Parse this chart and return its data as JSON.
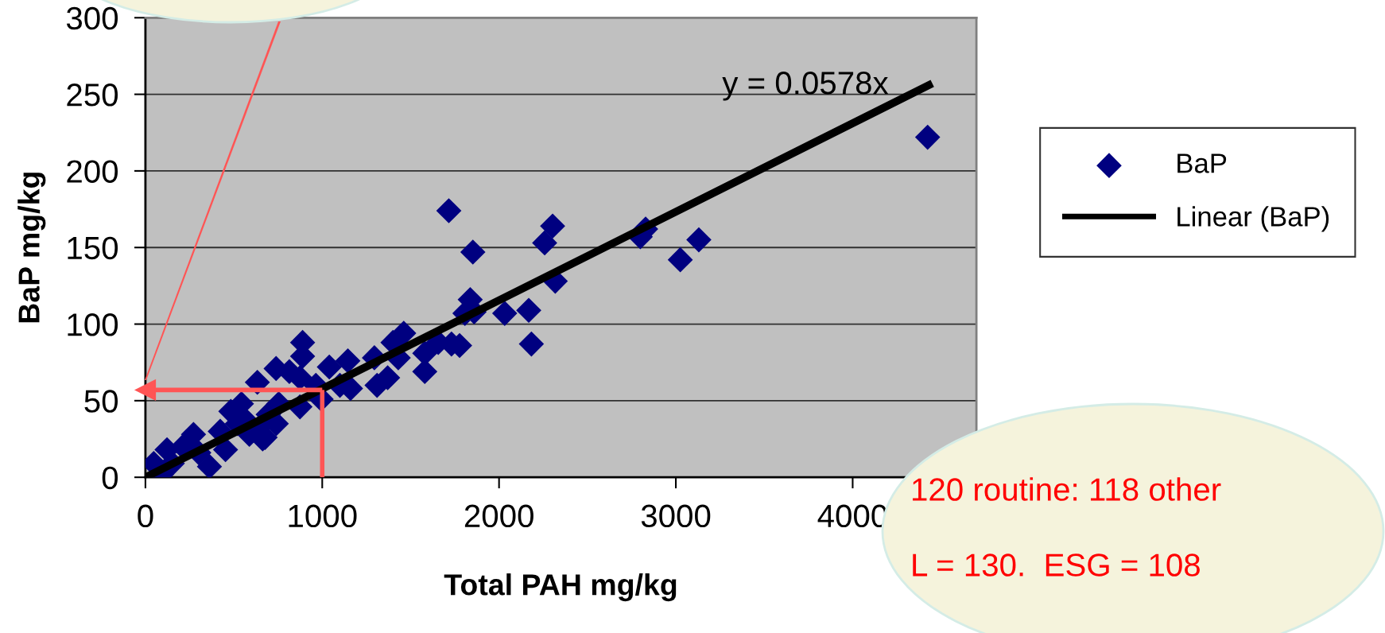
{
  "chart_data": {
    "type": "scatter",
    "xlabel": "Total PAH mg/kg",
    "ylabel": "BaP mg/kg",
    "xlim": [
      0,
      4700
    ],
    "xticks": [
      0,
      1000,
      2000,
      3000,
      4000
    ],
    "ylim": [
      0,
      300
    ],
    "yticks": [
      0,
      50,
      100,
      150,
      200,
      250,
      300
    ],
    "grid": "y",
    "legend": "right",
    "marker": "diamond",
    "series": [
      {
        "name": "BaP",
        "color": "#000080",
        "x": [
          47,
          92,
          122,
          152,
          212,
          272,
          302,
          362,
          423,
          453,
          483,
          520,
          543,
          560,
          588,
          633,
          640,
          663,
          677,
          694,
          739,
          740,
          754,
          814,
          874,
          874,
          889,
          889,
          964,
          994,
          1040,
          1100,
          1145,
          1160,
          1295,
          1310,
          1370,
          1400,
          1430,
          1461,
          1580,
          1580,
          1656,
          1716,
          1731,
          1777,
          1807,
          1837,
          1852,
          1859,
          2032,
          2168,
          2183,
          2258,
          2303,
          2318,
          2799,
          2829,
          3025,
          3130,
          4424
        ],
        "values": [
          9,
          2,
          18,
          9,
          20,
          28,
          16,
          7,
          30,
          18,
          43,
          35,
          48,
          38,
          28,
          62,
          32,
          25,
          26,
          41,
          71,
          35,
          48,
          69,
          65,
          46,
          88,
          79,
          60,
          51,
          72,
          60,
          76,
          58,
          78,
          60,
          65,
          88,
          78,
          94,
          81,
          69,
          88,
          174,
          87,
          86,
          107,
          116,
          147,
          108,
          107,
          109,
          87,
          153,
          164,
          128,
          157,
          162,
          142,
          155,
          222
        ]
      },
      {
        "name": "Linear (BaP)",
        "type": "line",
        "color": "#000000",
        "marker": "none",
        "x": [
          0,
          4431
        ],
        "values": [
          0,
          256
        ]
      }
    ],
    "ref_lines": [
      {
        "axis": "x",
        "value": 1000,
        "color": "#ff5555"
      },
      {
        "axis": "y",
        "value": 57,
        "color": "#ff5555"
      }
    ],
    "annotations": [
      "y = 0.0578x",
      "120 routine: 118 other",
      "L = 130.  ESG = 108"
    ]
  }
}
